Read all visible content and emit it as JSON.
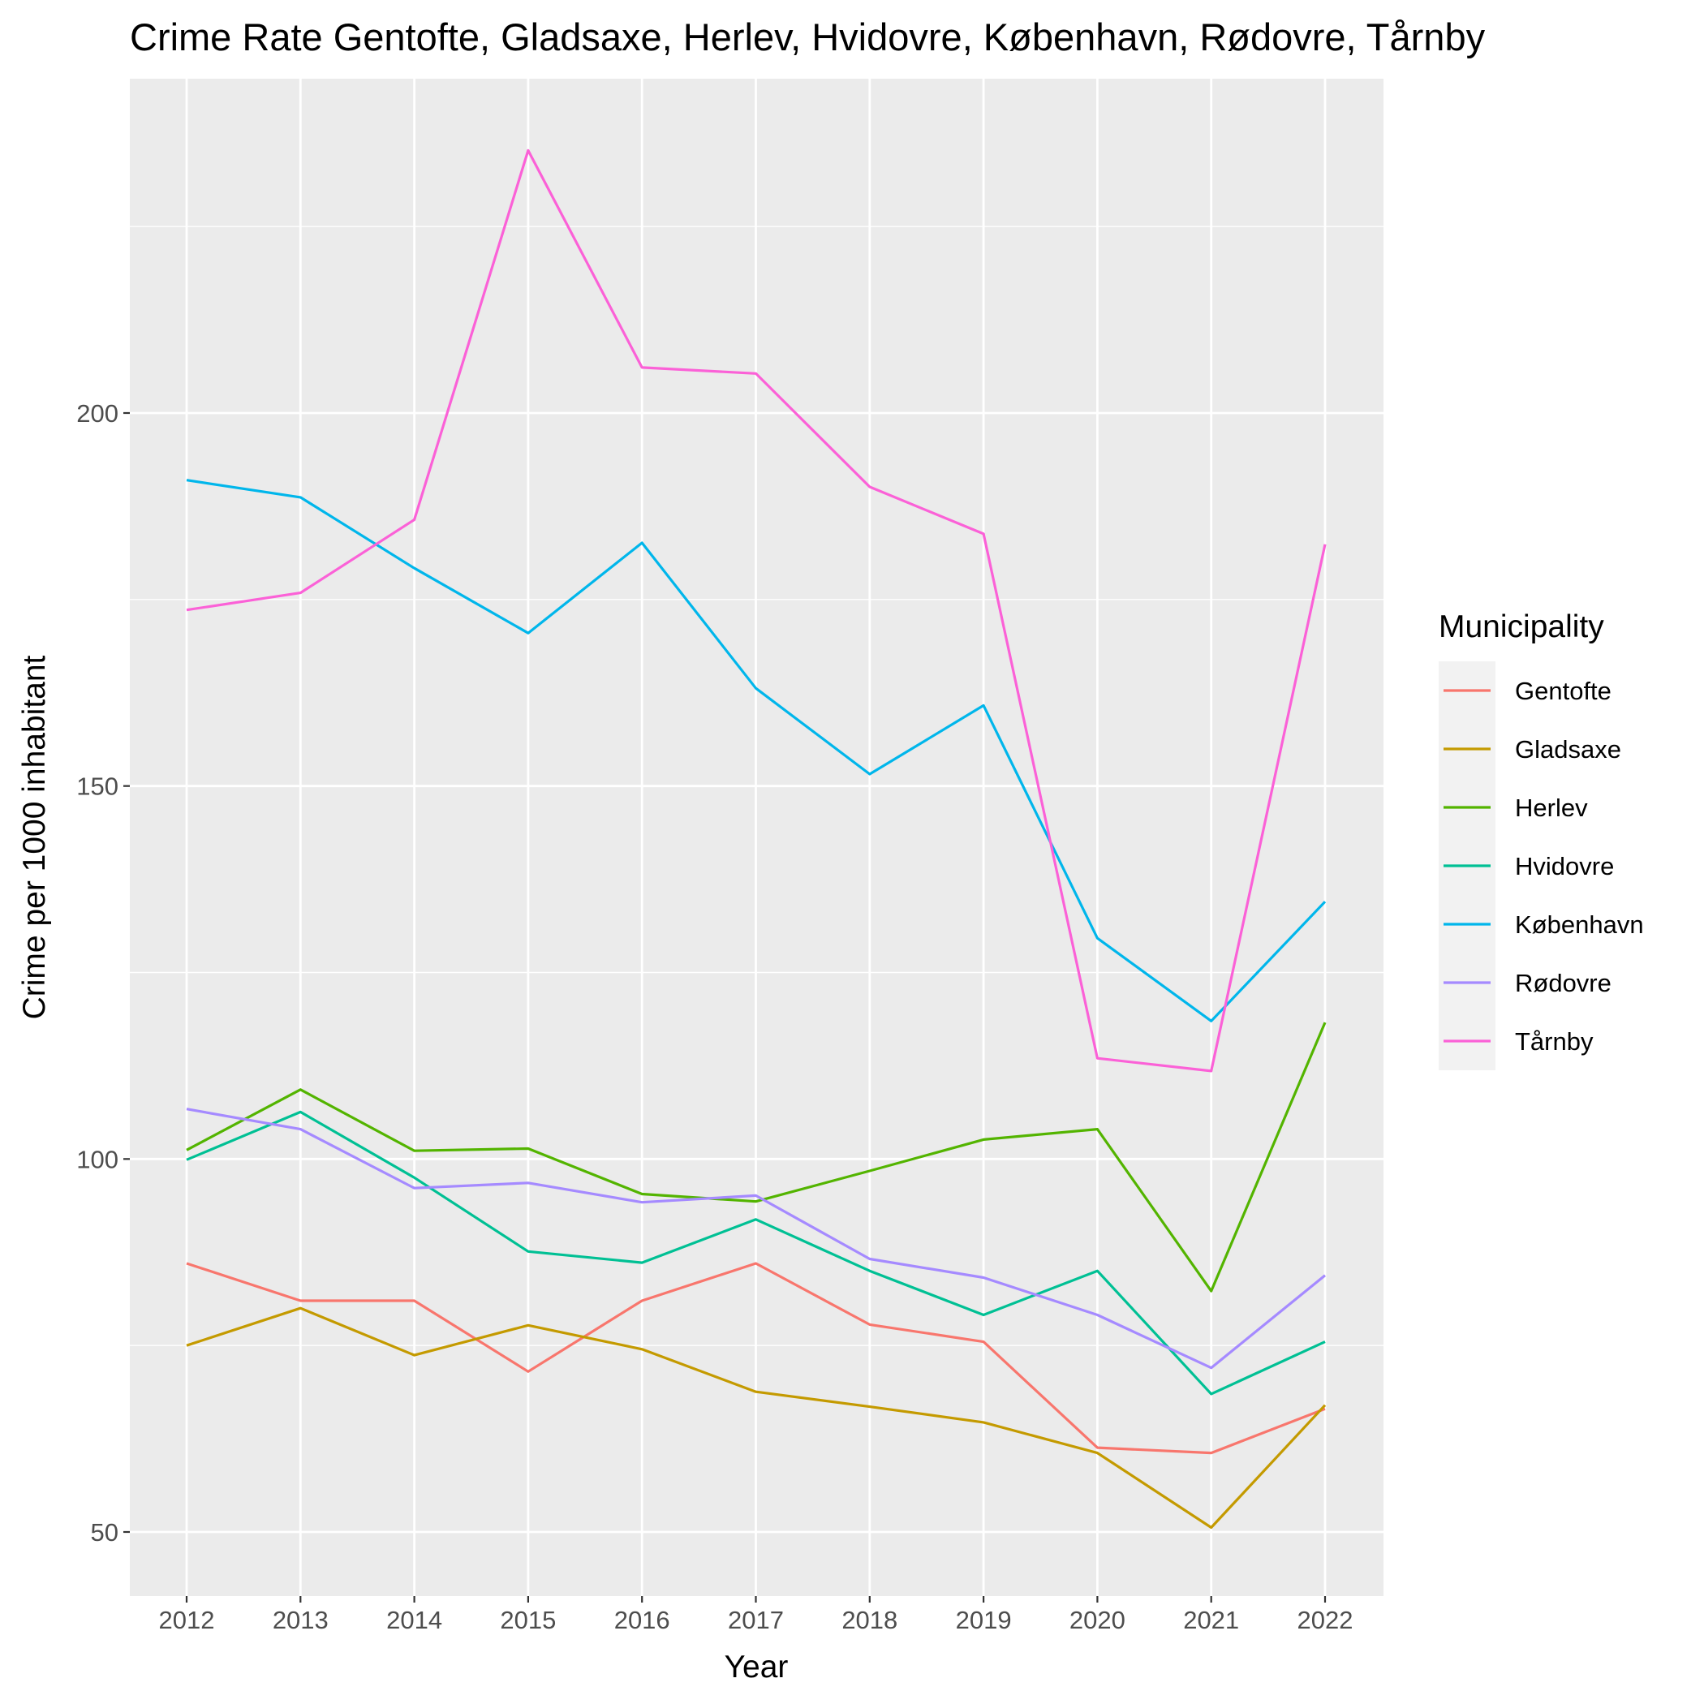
{
  "chart_data": {
    "type": "line",
    "title": "Crime Rate Gentofte, Gladsaxe, Herlev, Hvidovre, København, Rødovre, Tårnby",
    "xlabel": "Year",
    "ylabel": "Crime per 1000 inhabitant",
    "x": [
      2012,
      2013,
      2014,
      2015,
      2016,
      2017,
      2018,
      2019,
      2020,
      2021,
      2022
    ],
    "x_tick_labels": [
      "2012",
      "2013",
      "2014",
      "2015",
      "2016",
      "2017",
      "2018",
      "2019",
      "2020",
      "2021",
      "2022"
    ],
    "y_ticks": [
      50,
      100,
      150,
      200
    ],
    "y_tick_labels": [
      "50",
      "100",
      "150",
      "200"
    ],
    "ylim": [
      43,
      235
    ],
    "grid": true,
    "legend": {
      "title": "Municipality",
      "position": "right"
    },
    "series": [
      {
        "name": "Gentofte",
        "color": "#F8766D",
        "values": [
          86,
          81,
          81,
          71.5,
          81,
          86,
          77.8,
          75.5,
          61.3,
          60.6,
          66.5
        ]
      },
      {
        "name": "Gladsaxe",
        "color": "#C49A00",
        "values": [
          75,
          80,
          73.7,
          77.7,
          74.5,
          68.8,
          66.8,
          64.7,
          60.6,
          50.6,
          67
        ]
      },
      {
        "name": "Herlev",
        "color": "#53B400",
        "values": [
          101.2,
          109.3,
          101.1,
          101.4,
          95.3,
          94.3,
          98.4,
          102.6,
          104,
          82.3,
          118.3
        ]
      },
      {
        "name": "Hvidovre",
        "color": "#00C094",
        "values": [
          99.9,
          106.3,
          97.5,
          87.6,
          86.1,
          91.9,
          85,
          79.1,
          85,
          68.5,
          75.5
        ]
      },
      {
        "name": "København",
        "color": "#00B6EB",
        "values": [
          191,
          188.7,
          179.2,
          170.5,
          182.6,
          163.1,
          151.6,
          160.8,
          129.6,
          118.5,
          134.5
        ]
      },
      {
        "name": "Rødovre",
        "color": "#A58AFF",
        "values": [
          106.7,
          104,
          96.1,
          96.8,
          94.2,
          95.1,
          86.6,
          84.1,
          79.1,
          72,
          84.4
        ]
      },
      {
        "name": "Tårnby",
        "color": "#FB61D7",
        "values": [
          173.6,
          175.9,
          185.7,
          235.2,
          206.1,
          205.3,
          190.1,
          183.8,
          113.5,
          111.8,
          182.4
        ]
      }
    ]
  }
}
